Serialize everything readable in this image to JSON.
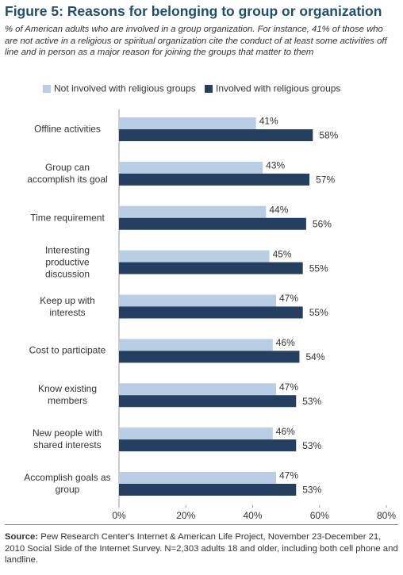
{
  "chart_data": {
    "type": "bar",
    "orientation": "horizontal",
    "title": "Figure 5: Reasons for belonging to group or organization",
    "subtitle": "% of American adults who are involved in a group organization. For instance, 41% of those who are not active in a religious or spiritual organization cite the conduct of at least some activities off line and in person as a major reason for joining the groups that matter to them",
    "categories": [
      "Offline activities",
      "Group can accomplish its goal",
      "Time requirement",
      "Interesting productive discussion",
      "Keep up with interests",
      "Cost to participate",
      "Know existing members",
      "New people with shared interests",
      "Accomplish goals as group"
    ],
    "series": [
      {
        "name": "Not involved with religious groups",
        "color": "#b9cde5",
        "values": [
          41,
          43,
          44,
          45,
          47,
          46,
          47,
          46,
          47
        ],
        "value_labels": [
          "41%",
          "43%",
          "44%",
          "45%",
          "47%",
          "46%",
          "47%",
          "46%",
          "47%"
        ]
      },
      {
        "name": "Involved with religious groups",
        "color": "#243f60",
        "values": [
          58,
          57,
          56,
          55,
          55,
          54,
          53,
          53,
          53
        ],
        "value_labels": [
          "58%",
          "57%",
          "56%",
          "55%",
          "55%",
          "54%",
          "53%",
          "53%",
          "53%"
        ]
      }
    ],
    "xlim": [
      0,
      80
    ],
    "xticks": [
      {
        "value": 0,
        "label": "0%"
      },
      {
        "value": 20,
        "label": "20%"
      },
      {
        "value": 40,
        "label": "40%"
      },
      {
        "value": 60,
        "label": "60%"
      },
      {
        "value": 80,
        "label": "80%"
      }
    ],
    "legend": "top",
    "source_label": "Source:",
    "source": "Pew Research Center's Internet & American Life Project, November 23-December 21, 2010 Social Side of the Internet Survey. N=2,303 adults 18 and older, including both cell phone and landline."
  }
}
